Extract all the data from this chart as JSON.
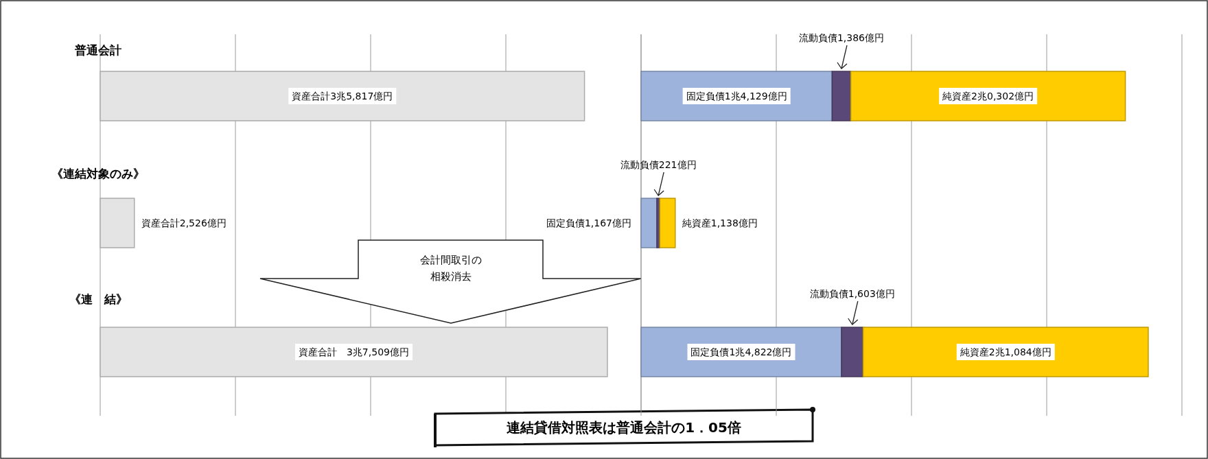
{
  "chart_data": [
    {
      "type": "bar",
      "orientation": "horizontal",
      "categories": [
        "普通会計",
        "《連結対象のみ》",
        "《連　結》"
      ],
      "xlim": [
        0,
        40000
      ],
      "xticks": [
        {
          "value": 0,
          "label": null
        },
        {
          "value": 10000,
          "label": null
        },
        {
          "value": 20000,
          "label": null
        },
        {
          "value": 30000,
          "label": null
        },
        {
          "value": 40000,
          "label": null
        }
      ],
      "grid": "x",
      "tick_labels": "y",
      "series": [
        {
          "color": "#e4e4e4",
          "values": [
            35817,
            2526,
            37509
          ],
          "value_labels": [
            "資産合計3兆5,817億円",
            "資産合計2,526億円",
            "資産合計　3兆7,509億円"
          ]
        }
      ],
      "annotations": [
        "会計間取引の",
        "相殺消去",
        "連結貸借対照表は普通会計の1．05倍"
      ]
    },
    {
      "type": "bar",
      "orientation": "horizontal",
      "stacked": true,
      "categories": [
        null,
        null,
        null
      ],
      "xlim": [
        0,
        40000
      ],
      "xticks": [
        {
          "value": 0,
          "label": null
        },
        {
          "value": 10000,
          "label": null
        },
        {
          "value": 20000,
          "label": null
        },
        {
          "value": 30000,
          "label": null
        },
        {
          "value": 40000,
          "label": null
        }
      ],
      "grid": "x",
      "series": [
        {
          "color": "#9db3dc",
          "values": [
            14129,
            1167,
            14822
          ],
          "value_labels": [
            "固定負債1兆4,129億円",
            "固定負債1,167億円",
            "固定負債1兆4,822億円"
          ]
        },
        {
          "color": "#5a4878",
          "values": [
            1386,
            221,
            1603
          ],
          "value_labels": [
            "流動負債1,386億円",
            "流動負債221億円",
            "流動負債1,603億円"
          ]
        },
        {
          "color": "#ffcc00",
          "values": [
            20302,
            1138,
            21084
          ],
          "value_labels": [
            "純資産2兆0,302億円",
            "純資産1,138億円",
            "純資産2兆1,084億円"
          ]
        }
      ]
    }
  ]
}
